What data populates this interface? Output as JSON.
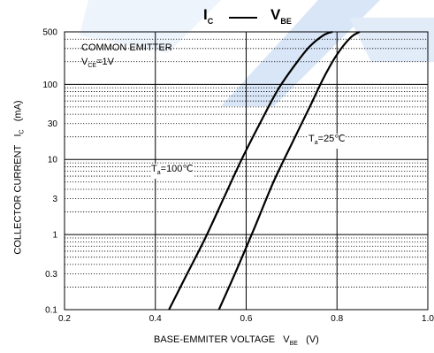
{
  "title": {
    "left_main": "I",
    "left_sub": "C",
    "right_main": "V",
    "right_sub": "BE"
  },
  "annotations": {
    "config_line1": "COMMON EMITTER",
    "config_line2_main": "V",
    "config_line2_sub": "CE",
    "config_line2_value": "=1V",
    "label_25_main": "T",
    "label_25_sub": "a",
    "label_25_value": "=25℃",
    "label_100_main": "T",
    "label_100_sub": "a",
    "label_100_value": "=100℃"
  },
  "axes": {
    "y_label_text": "COLLECTOR CURRENT",
    "y_label_main": "I",
    "y_label_sub": "C",
    "y_label_unit": "(mA)",
    "x_label_text": "BASE-EMMITER VOLTAGE",
    "x_label_main": "V",
    "x_label_sub": "BE",
    "x_label_unit": "(V)"
  },
  "colors": {
    "curve": "#000000",
    "grid": "#000000",
    "watermark": "#cfe0f5"
  },
  "chart_data": {
    "type": "line",
    "title": "IC — VBE",
    "xlabel": "BASE-EMMITER VOLTAGE VBE (V)",
    "ylabel": "COLLECTOR CURRENT IC (mA)",
    "xlim": [
      0.2,
      1.0
    ],
    "ylim": [
      0.1,
      500
    ],
    "yscale": "log",
    "x_ticks": [
      "0.2",
      "0.4",
      "0.6",
      "0.8",
      "1.0"
    ],
    "x_tick_values": [
      0.2,
      0.4,
      0.6,
      0.8,
      1.0
    ],
    "y_ticks": [
      "0.1",
      "0.3",
      "1",
      "3",
      "10",
      "30",
      "100",
      "500"
    ],
    "y_tick_values": [
      0.1,
      0.3,
      1,
      3,
      10,
      30,
      100,
      500
    ],
    "grid": "dotted minor, solid major decades",
    "series": [
      {
        "name": "Ta=100℃",
        "x": [
          0.43,
          0.47,
          0.51,
          0.55,
          0.59,
          0.63,
          0.67,
          0.71,
          0.74,
          0.77,
          0.79
        ],
        "y": [
          0.1,
          0.3,
          0.9,
          3.0,
          10,
          30,
          85,
          190,
          320,
          450,
          500
        ]
      },
      {
        "name": "Ta=25℃",
        "x": [
          0.54,
          0.58,
          0.62,
          0.66,
          0.7,
          0.74,
          0.77,
          0.8,
          0.83,
          0.85
        ],
        "y": [
          0.1,
          0.35,
          1.3,
          5.0,
          16,
          50,
          120,
          250,
          420,
          500
        ]
      }
    ]
  }
}
